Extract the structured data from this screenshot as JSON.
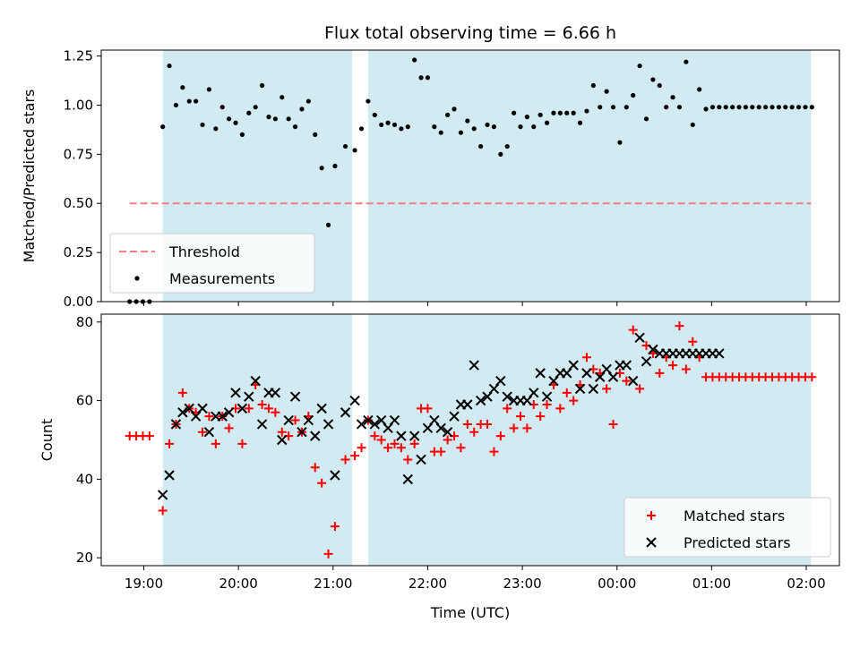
{
  "chart_data": {
    "title": "Flux total observing time = 6.66 h",
    "x_axis": {
      "label": "Time (UTC)",
      "range_hours": [
        18.55,
        26.35
      ],
      "tick_values": [
        19,
        20,
        21,
        22,
        23,
        24,
        25,
        26
      ],
      "tick_labels": [
        "19:00",
        "20:00",
        "21:00",
        "22:00",
        "23:00",
        "00:00",
        "01:00",
        "02:00"
      ]
    },
    "shaded_intervals_hours": [
      [
        19.2,
        21.2
      ],
      [
        21.37,
        26.05
      ]
    ],
    "shade_color": "#add8e6",
    "panels": [
      {
        "type": "scatter",
        "ylabel": "Matched/Predicted stars",
        "ylim": [
          0,
          1.28
        ],
        "yticks": [
          0,
          0.25,
          0.5,
          0.75,
          1.0,
          1.25
        ],
        "ytick_labels": [
          "0.00",
          "0.25",
          "0.50",
          "0.75",
          "1.00",
          "1.25"
        ],
        "threshold": {
          "name": "Threshold",
          "value": 0.5,
          "x_range_hours": [
            18.85,
            26.05
          ],
          "color": "#f08080"
        },
        "series": [
          {
            "name": "Measurements",
            "marker": "dot",
            "color": "#000000",
            "x": [
              18.85,
              18.92,
              18.99,
              19.06,
              19.2,
              19.27,
              19.34,
              19.41,
              19.48,
              19.55,
              19.62,
              19.69,
              19.76,
              19.83,
              19.9,
              19.97,
              20.04,
              20.11,
              20.18,
              20.25,
              20.32,
              20.39,
              20.46,
              20.53,
              20.6,
              20.67,
              20.74,
              20.81,
              20.88,
              20.95,
              21.02,
              21.13,
              21.23,
              21.3,
              21.37,
              21.44,
              21.51,
              21.58,
              21.65,
              21.72,
              21.79,
              21.86,
              21.93,
              22.0,
              22.07,
              22.14,
              22.21,
              22.28,
              22.35,
              22.42,
              22.49,
              22.56,
              22.63,
              22.7,
              22.77,
              22.84,
              22.91,
              22.98,
              23.05,
              23.12,
              23.19,
              23.26,
              23.33,
              23.4,
              23.47,
              23.54,
              23.61,
              23.68,
              23.75,
              23.82,
              23.89,
              23.96,
              24.03,
              24.1,
              24.17,
              24.24,
              24.31,
              24.38,
              24.45,
              24.52,
              24.59,
              24.66,
              24.73,
              24.8,
              24.87,
              24.94,
              25.01,
              25.08,
              25.15,
              25.22,
              25.29,
              25.36,
              25.43,
              25.5,
              25.57,
              25.64,
              25.71,
              25.78,
              25.85,
              25.92,
              25.99,
              26.06
            ],
            "y": [
              0.0,
              0.0,
              0.0,
              0.0,
              0.89,
              1.2,
              1.0,
              1.09,
              1.02,
              1.02,
              0.9,
              1.08,
              0.88,
              0.99,
              0.93,
              0.91,
              0.85,
              0.96,
              0.99,
              1.1,
              0.94,
              0.93,
              1.04,
              0.93,
              0.89,
              0.98,
              1.02,
              0.85,
              0.68,
              0.39,
              0.69,
              0.79,
              0.77,
              0.88,
              1.02,
              0.95,
              0.9,
              0.91,
              0.9,
              0.88,
              0.89,
              1.23,
              1.14,
              1.14,
              0.89,
              0.86,
              0.95,
              0.98,
              0.86,
              0.92,
              0.88,
              0.79,
              0.9,
              0.89,
              0.75,
              0.79,
              0.96,
              0.89,
              0.94,
              0.89,
              0.95,
              0.91,
              0.96,
              0.96,
              0.96,
              0.96,
              0.91,
              0.97,
              1.1,
              0.99,
              1.07,
              0.99,
              0.81,
              0.99,
              1.05,
              1.2,
              0.93,
              1.13,
              1.1,
              0.99,
              1.04,
              0.99,
              1.22,
              0.9,
              1.08,
              0.98,
              0.99,
              0.99,
              0.99,
              0.99,
              0.99,
              0.99,
              0.99,
              0.99,
              0.99,
              0.99,
              0.99,
              0.99,
              0.99,
              0.99,
              0.99,
              0.99
            ]
          }
        ],
        "legend": {
          "position": "lower-left",
          "entries": [
            "Threshold",
            "Measurements"
          ]
        }
      },
      {
        "type": "scatter",
        "ylabel": "Count",
        "ylim": [
          18,
          82
        ],
        "yticks": [
          20,
          40,
          60,
          80
        ],
        "ytick_labels": [
          "20",
          "40",
          "60",
          "80"
        ],
        "series": [
          {
            "name": "Matched stars",
            "marker": "+",
            "color": "#ff0000",
            "x": [
              18.85,
              18.92,
              18.99,
              19.06,
              19.2,
              19.27,
              19.34,
              19.41,
              19.48,
              19.55,
              19.62,
              19.69,
              19.76,
              19.83,
              19.9,
              19.97,
              20.04,
              20.11,
              20.18,
              20.25,
              20.32,
              20.39,
              20.46,
              20.53,
              20.6,
              20.67,
              20.74,
              20.81,
              20.88,
              20.95,
              21.02,
              21.13,
              21.23,
              21.3,
              21.37,
              21.44,
              21.51,
              21.58,
              21.65,
              21.72,
              21.79,
              21.86,
              21.93,
              22.0,
              22.07,
              22.14,
              22.21,
              22.28,
              22.35,
              22.42,
              22.49,
              22.56,
              22.63,
              22.7,
              22.77,
              22.84,
              22.91,
              22.98,
              23.05,
              23.12,
              23.19,
              23.26,
              23.33,
              23.4,
              23.47,
              23.54,
              23.61,
              23.68,
              23.75,
              23.82,
              23.89,
              23.96,
              24.03,
              24.1,
              24.17,
              24.24,
              24.31,
              24.38,
              24.45,
              24.52,
              24.59,
              24.66,
              24.73,
              24.8,
              24.87,
              24.94,
              25.01,
              25.08,
              25.15,
              25.22,
              25.29,
              25.36,
              25.43,
              25.5,
              25.57,
              25.64,
              25.71,
              25.78,
              25.85,
              25.92,
              25.99,
              26.06
            ],
            "y": [
              51,
              51,
              51,
              51,
              32,
              49,
              54,
              62,
              58,
              57,
              52,
              56,
              49,
              56,
              53,
              58,
              49,
              58,
              64,
              59,
              58,
              57,
              52,
              51,
              55,
              52,
              56,
              43,
              39,
              21,
              28,
              45,
              46,
              48,
              55,
              51,
              50,
              48,
              49,
              48,
              45,
              49,
              58,
              58,
              47,
              47,
              50,
              51,
              48,
              54,
              52,
              54,
              54,
              47,
              51,
              58,
              53,
              56,
              53,
              59,
              56,
              59,
              64,
              58,
              62,
              60,
              64,
              71,
              68,
              67,
              63,
              54,
              67,
              65,
              78,
              63,
              74,
              72,
              67,
              71,
              69,
              79,
              68,
              75,
              71,
              66,
              66,
              66,
              66,
              66,
              66,
              66,
              66,
              66,
              66,
              66,
              66,
              66,
              66,
              66,
              66,
              66
            ]
          },
          {
            "name": "Predicted stars",
            "marker": "x",
            "color": "#000000",
            "x": [
              19.2,
              19.27,
              19.34,
              19.41,
              19.48,
              19.55,
              19.62,
              19.69,
              19.76,
              19.83,
              19.9,
              19.97,
              20.04,
              20.11,
              20.18,
              20.25,
              20.32,
              20.39,
              20.46,
              20.53,
              20.6,
              20.67,
              20.74,
              20.81,
              20.88,
              20.95,
              21.02,
              21.13,
              21.23,
              21.3,
              21.37,
              21.44,
              21.51,
              21.58,
              21.65,
              21.72,
              21.79,
              21.86,
              21.93,
              22.0,
              22.07,
              22.14,
              22.21,
              22.28,
              22.35,
              22.42,
              22.49,
              22.56,
              22.63,
              22.7,
              22.77,
              22.84,
              22.91,
              22.98,
              23.05,
              23.12,
              23.19,
              23.26,
              23.33,
              23.4,
              23.47,
              23.54,
              23.61,
              23.68,
              23.75,
              23.82,
              23.89,
              23.96,
              24.03,
              24.1,
              24.17,
              24.24,
              24.31,
              24.38,
              24.45,
              24.52,
              24.59,
              24.66,
              24.73,
              24.8,
              24.87,
              24.94,
              25.01,
              25.08
            ],
            "y": [
              36,
              41,
              54,
              57,
              58,
              56,
              58,
              52,
              56,
              56,
              57,
              62,
              58,
              61,
              65,
              54,
              62,
              62,
              50,
              55,
              61,
              52,
              55,
              51,
              58,
              54,
              41,
              57,
              60,
              54,
              55,
              54,
              55,
              53,
              55,
              51,
              40,
              51,
              45,
              53,
              55,
              53,
              52,
              56,
              59,
              59,
              69,
              60,
              61,
              63,
              65,
              61,
              60,
              60,
              60,
              62,
              67,
              61,
              65,
              67,
              67,
              69,
              63,
              67,
              63,
              66,
              68,
              66,
              69,
              69,
              65,
              76,
              70,
              73,
              72,
              72,
              72,
              72,
              72,
              72,
              72,
              72,
              72,
              72
            ]
          }
        ],
        "legend": {
          "position": "lower-right",
          "entries": [
            "Matched stars",
            "Predicted stars"
          ]
        }
      }
    ]
  }
}
